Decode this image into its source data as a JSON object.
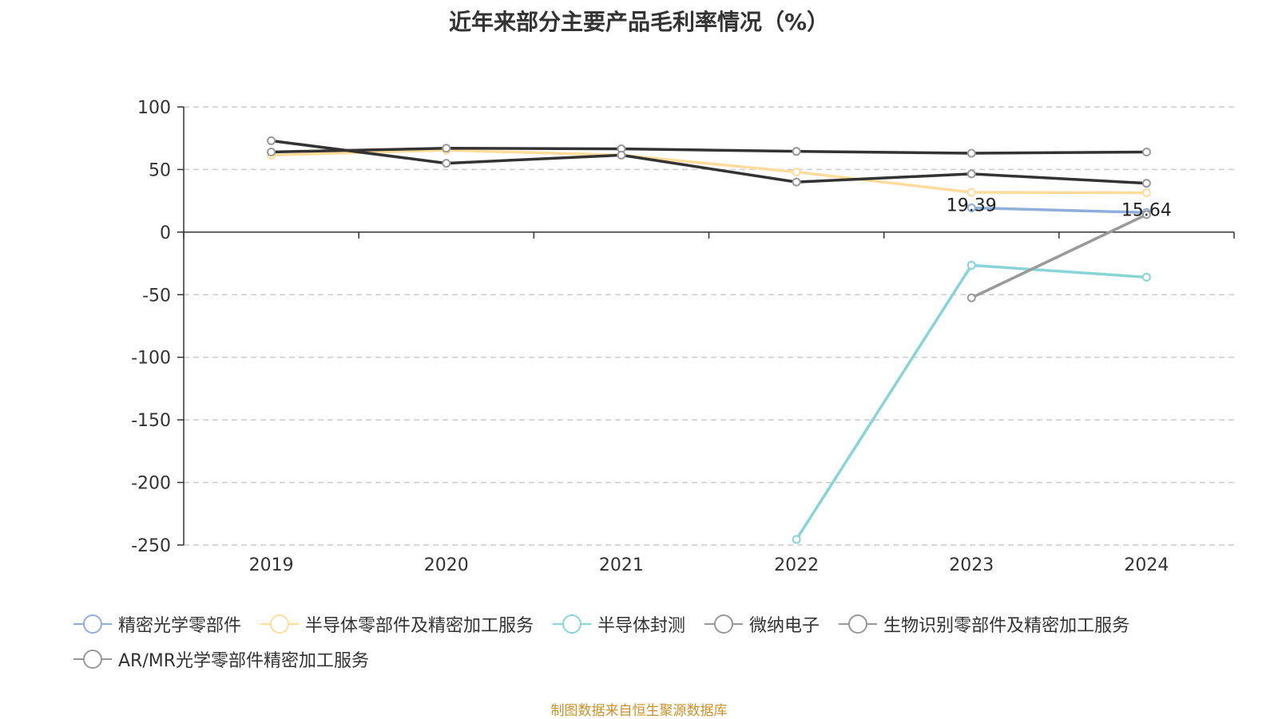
{
  "chart_data": {
    "type": "line",
    "title": "近年来部分主要产品毛利率情况（%）",
    "xlabel": "",
    "ylabel": "",
    "categories": [
      "2019",
      "2020",
      "2021",
      "2022",
      "2023",
      "2024"
    ],
    "ylim": [
      -250,
      100
    ],
    "yticks": [
      100,
      50,
      0,
      -50,
      -100,
      -150,
      -200,
      -250
    ],
    "grid": true,
    "legend_position": "bottom",
    "series": [
      {
        "name": "精密光学零部件",
        "color": "#8eaedb",
        "values": [
          null,
          null,
          null,
          null,
          19.39,
          15.64
        ],
        "labels": [
          null,
          null,
          null,
          null,
          "19.39",
          "15.64"
        ]
      },
      {
        "name": "半导体零部件及精密加工服务",
        "color": "#fddc9c",
        "values": [
          61.5,
          65.5,
          61.5,
          48.0,
          31.8,
          31.5
        ]
      },
      {
        "name": "半导体封测",
        "color": "#88d4d7",
        "values": [
          null,
          null,
          null,
          -245.5,
          -26.5,
          -36.0
        ]
      },
      {
        "name": "微纳电子",
        "color": "#333333",
        "values": [
          64.0,
          67.0,
          66.5,
          64.5,
          63.0,
          64.0
        ]
      },
      {
        "name": "生物识别零部件及精密加工服务",
        "color": "#333333",
        "values": [
          73.0,
          55.0,
          61.5,
          40.0,
          46.5,
          39.0
        ]
      },
      {
        "name": "AR/MR光学零部件精密加工服务",
        "color": "#999999",
        "values": [
          null,
          null,
          null,
          null,
          -52.5,
          14.0
        ]
      }
    ]
  },
  "legend_symbol_colors": [
    "#8eaedb",
    "#fddc9c",
    "#88d4d7",
    "#999999",
    "#999999",
    "#999999"
  ],
  "source_note": "制图数据来自恒生聚源数据库"
}
